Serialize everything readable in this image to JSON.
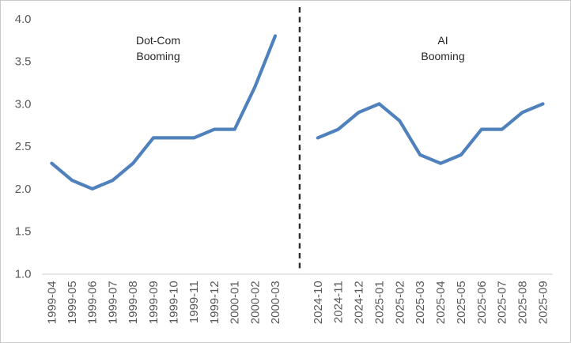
{
  "chart_data": {
    "type": "line",
    "title": "",
    "xlabel": "",
    "ylabel": "",
    "ylim": [
      1.0,
      4.0
    ],
    "ytick_step": 0.5,
    "yticks": [
      "4.0",
      "3.5",
      "3.0",
      "2.5",
      "2.0",
      "1.5",
      "1.0"
    ],
    "grid": false,
    "legend_position": "none",
    "line_color": "#4F81BD",
    "axis_color": "#D9D9D9",
    "tick_label_color": "#595959",
    "annotation_color": "#262626",
    "separator": {
      "style": "dashed",
      "color": "#2b2b2b"
    },
    "panels": [
      {
        "name": "dotcom",
        "annotation": "Dot-Com\nBooming",
        "categories": [
          "1999-04",
          "1999-05",
          "1999-06",
          "1999-07",
          "1999-08",
          "1999-09",
          "1999-10",
          "1999-11",
          "1999-12",
          "2000-01",
          "2000-02",
          "2000-03"
        ],
        "values": [
          2.3,
          2.1,
          2.0,
          2.1,
          2.3,
          2.6,
          2.6,
          2.6,
          2.7,
          2.7,
          3.2,
          3.8
        ]
      },
      {
        "name": "ai",
        "annotation": "AI\nBooming",
        "categories": [
          "2024-10",
          "2024-11",
          "2024-12",
          "2025-01",
          "2025-02",
          "2025-03",
          "2025-04",
          "2025-05",
          "2025-06",
          "2025-07",
          "2025-08",
          "2025-09"
        ],
        "values": [
          2.6,
          2.7,
          2.9,
          3.0,
          2.8,
          2.4,
          2.3,
          2.4,
          2.7,
          2.7,
          2.9,
          3.0
        ]
      }
    ]
  }
}
